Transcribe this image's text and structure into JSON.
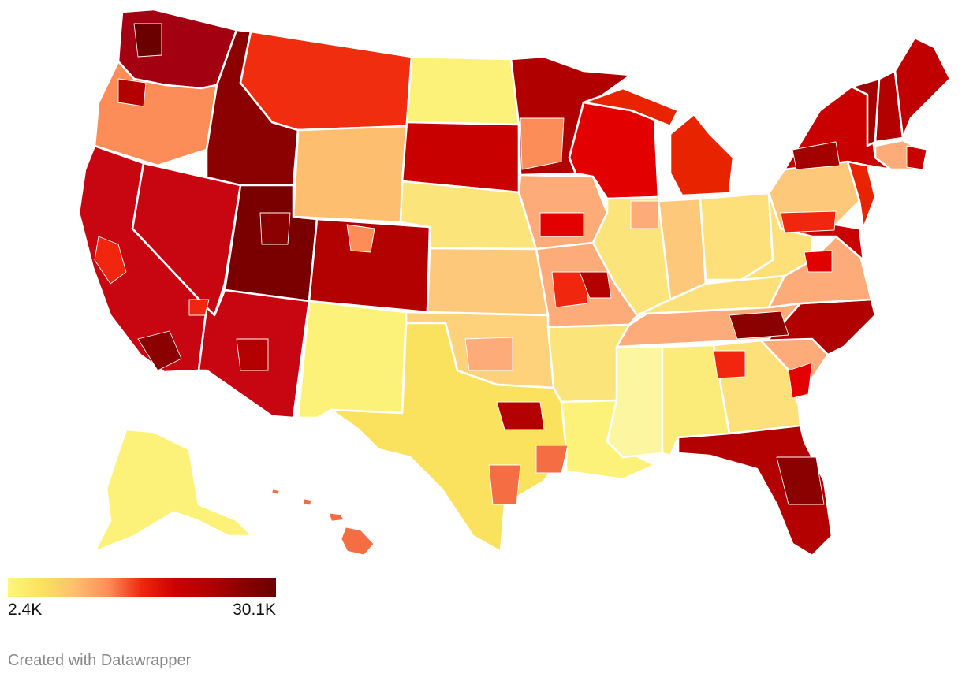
{
  "legend": {
    "min_label": "2.4K",
    "max_label": "30.1K",
    "scale_colors": [
      "#fdf67a",
      "#fbe25e",
      "#fdbf6f",
      "#fc8d59",
      "#f0260f",
      "#cc0000",
      "#b30000",
      "#8b0000",
      "#6b0000"
    ]
  },
  "credit": "Created with Datawrapper",
  "map_colors": {
    "washington": "#a30012",
    "oregon": "#fc8d59",
    "california": "#c80612",
    "nevada": "#c80612",
    "idaho": "#8b0000",
    "montana": "#f02d0f",
    "wyoming": "#fdbf6f",
    "utah": "#7a0000",
    "colorado": "#b30000",
    "arizona": "#c80612",
    "new_mexico": "#fdf279",
    "north_dakota": "#fdf279",
    "south_dakota": "#c80000",
    "nebraska": "#fbe47a",
    "kansas": "#fdc87a",
    "oklahoma": "#fdd27a",
    "texas": "#fbe25e",
    "minnesota": "#b00000",
    "iowa": "#fdab78",
    "missouri": "#fdab78",
    "arkansas": "#fbe47a",
    "louisiana": "#fdf279",
    "wisconsin": "#e20000",
    "illinois": "#fbe47a",
    "michigan": "#e82300",
    "indiana": "#fdc87a",
    "ohio": "#fde07a",
    "kentucky": "#fde07a",
    "tennessee": "#fdab78",
    "mississippi": "#fdf6a0",
    "alabama": "#fbeb78",
    "georgia": "#fde07a",
    "florida": "#b30000",
    "south_carolina": "#fdab78",
    "north_carolina": "#b00000",
    "virginia": "#fdab78",
    "west_virginia": "#fde07a",
    "pennsylvania": "#fdc87a",
    "new_york": "#c80000",
    "vermont": "#a30000",
    "new_hampshire": "#b30000",
    "maine": "#c00000",
    "massachusetts": "#fdab78",
    "new_jersey": "#e82300",
    "maryland": "#c80000",
    "alaska": "#fdf279",
    "hawaii": "#f46d43"
  }
}
